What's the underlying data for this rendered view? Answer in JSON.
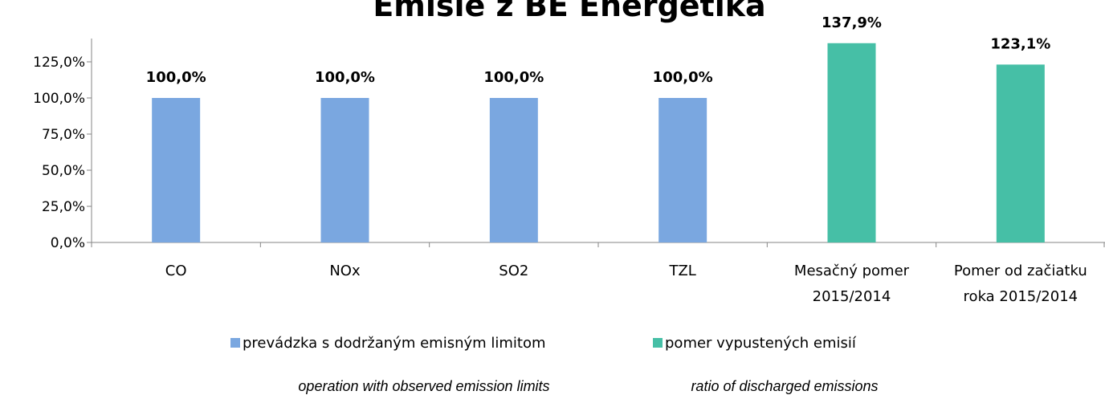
{
  "chart_data": {
    "type": "bar",
    "title": "Emisie z BE Energetika",
    "categories": [
      [
        "CO"
      ],
      [
        "NOx"
      ],
      [
        "SO2"
      ],
      [
        "TZL"
      ],
      [
        "Mesačný pomer",
        "2015/2014"
      ],
      [
        "Pomer od začiatku",
        "roka 2015/2014"
      ]
    ],
    "series": [
      {
        "name": "prevádzka s dodržaným emisným limitom",
        "name_en": "operation with observed emission limits",
        "color": "#7aa7e0",
        "values": [
          100.0,
          100.0,
          100.0,
          100.0,
          null,
          null
        ],
        "labels": [
          "100,0%",
          "100,0%",
          "100,0%",
          "100,0%",
          "",
          ""
        ]
      },
      {
        "name": "pomer vypustených emisií",
        "name_en": "ratio of discharged emissions",
        "color": "#46bfa6",
        "values": [
          null,
          null,
          null,
          null,
          137.9,
          123.1
        ],
        "labels": [
          "",
          "",
          "",
          "",
          "137,9%",
          "123,1%"
        ]
      }
    ],
    "ylim": [
      0,
      150
    ],
    "yticks": [
      0,
      25,
      50,
      75,
      100,
      125
    ],
    "ytick_labels": [
      "0,0%",
      "25,0%",
      "50,0%",
      "75,0%",
      "100,0%",
      "125,0%"
    ],
    "xlabel": "",
    "ylabel": "",
    "grid": false,
    "legend_position": "bottom"
  }
}
